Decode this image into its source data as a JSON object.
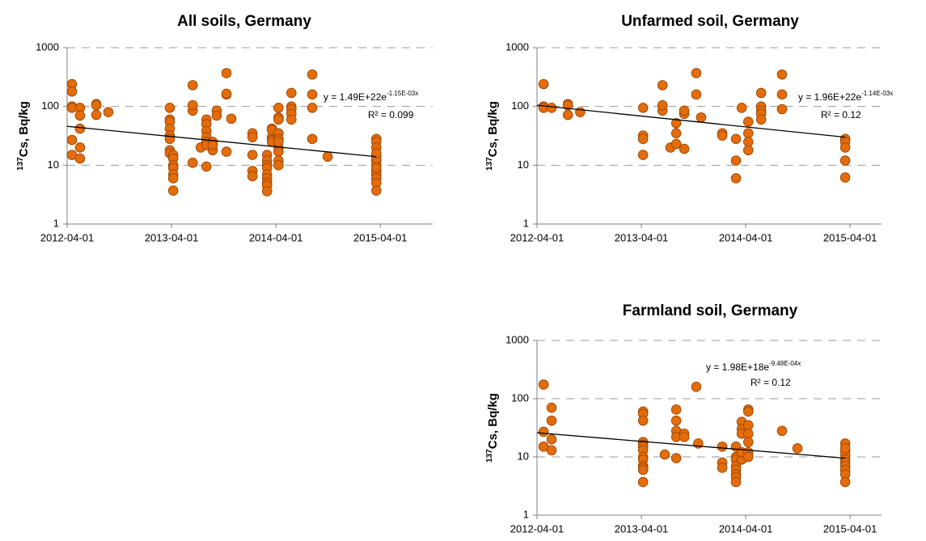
{
  "chart_data": [
    {
      "type": "scatter",
      "title": "All soils, Germany",
      "ylabel": {
        "superscript": "137",
        "text": "Cs, Bq/kg"
      },
      "color": "#e46c0a",
      "edgecolor": "#a04a08",
      "x": [
        "2012-04-18",
        "2012-04-18",
        "2012-04-18",
        "2012-04-18",
        "2012-04-18",
        "2012-04-18",
        "2012-05-16",
        "2012-05-16",
        "2012-05-16",
        "2012-05-16",
        "2012-05-16",
        "2012-07-12",
        "2012-07-12",
        "2012-07-12",
        "2012-08-23",
        "2013-03-26",
        "2013-03-26",
        "2013-03-26",
        "2013-03-26",
        "2013-03-26",
        "2013-03-26",
        "2013-03-26",
        "2013-03-26",
        "2013-04-07",
        "2013-04-07",
        "2013-04-07",
        "2013-04-07",
        "2013-04-07",
        "2013-04-07",
        "2013-04-07",
        "2013-06-14",
        "2013-06-14",
        "2013-06-14",
        "2013-06-14",
        "2013-07-12",
        "2013-08-01",
        "2013-08-01",
        "2013-08-01",
        "2013-08-01",
        "2013-08-01",
        "2013-08-01",
        "2013-08-01",
        "2013-08-23",
        "2013-08-23",
        "2013-08-23",
        "2013-09-06",
        "2013-09-06",
        "2013-10-10",
        "2013-10-10",
        "2013-10-10",
        "2013-10-10",
        "2013-10-27",
        "2014-01-09",
        "2014-01-09",
        "2014-01-09",
        "2014-01-09",
        "2014-01-09",
        "2014-03-01",
        "2014-03-01",
        "2014-03-01",
        "2014-03-01",
        "2014-03-01",
        "2014-03-01",
        "2014-03-01",
        "2014-03-01",
        "2014-03-01",
        "2014-03-18",
        "2014-03-18",
        "2014-03-18",
        "2014-03-18",
        "2014-03-18",
        "2014-04-10",
        "2014-04-10",
        "2014-04-10",
        "2014-04-10",
        "2014-04-10",
        "2014-04-10",
        "2014-04-10",
        "2014-04-10",
        "2014-04-10",
        "2014-04-10",
        "2014-05-25",
        "2014-05-25",
        "2014-05-25",
        "2014-05-25",
        "2014-05-25",
        "2014-08-06",
        "2014-08-06",
        "2014-08-06",
        "2014-08-06",
        "2014-09-29",
        "2015-03-18",
        "2015-03-18",
        "2015-03-18",
        "2015-03-18",
        "2015-03-18",
        "2015-03-18",
        "2015-03-18",
        "2015-03-18",
        "2015-03-18",
        "2015-03-18",
        "2015-03-18",
        "2015-03-18",
        "2015-03-18",
        "2015-03-18"
      ],
      "values": [
        240,
        180,
        100,
        95,
        27,
        15,
        95,
        70,
        42,
        20,
        13,
        110,
        105,
        72,
        80,
        95,
        60,
        55,
        42,
        32,
        28,
        18,
        16,
        15,
        13,
        10,
        9,
        7,
        6,
        3.7,
        230,
        85,
        105,
        11,
        20,
        60,
        50,
        38,
        30,
        25,
        22,
        9.5,
        25,
        18,
        22,
        85,
        70,
        370,
        160,
        165,
        17,
        62,
        35,
        30,
        15,
        8,
        6.5,
        15,
        12,
        10,
        9,
        7,
        6,
        5,
        4.5,
        3.6,
        42,
        30,
        27,
        25,
        40,
        95,
        65,
        60,
        35,
        28,
        20,
        17,
        12,
        10,
        25,
        170,
        100,
        90,
        75,
        60,
        350,
        160,
        95,
        28,
        14,
        28,
        25,
        20,
        15,
        12,
        10,
        8,
        7,
        6,
        5,
        3.7,
        9,
        13,
        16
      ],
      "trendline": {
        "x": [
          "2012-04-01",
          "2015-03-18"
        ],
        "values": [
          46,
          14
        ],
        "color": "#000000"
      },
      "equation": {
        "text": "y = 1.49E+22e",
        "exponent": "-1.15E-03x"
      },
      "r2": "R² = 0.099",
      "xlim": [
        "2012-04-01",
        "2015-10-01"
      ],
      "xticks": [
        "2012-04-01",
        "2013-04-01",
        "2014-04-01",
        "2015-04-01"
      ],
      "yscale": "log",
      "ylim": [
        1,
        1000
      ],
      "yticks": [
        1,
        10,
        100,
        1000
      ],
      "grid": true
    },
    {
      "type": "scatter",
      "title": "Unfarmed soil, Germany",
      "ylabel": {
        "superscript": "137",
        "text": "Cs, Bq/kg"
      },
      "color": "#e46c0a",
      "edgecolor": "#a04a08",
      "x": [
        "2012-04-24",
        "2012-04-24",
        "2012-04-24",
        "2012-05-22",
        "2012-07-18",
        "2012-07-18",
        "2012-07-18",
        "2012-08-30",
        "2013-04-07",
        "2013-04-07",
        "2013-04-07",
        "2013-04-07",
        "2013-06-14",
        "2013-06-14",
        "2013-06-14",
        "2013-07-12",
        "2013-08-01",
        "2013-08-01",
        "2013-08-01",
        "2013-08-29",
        "2013-08-29",
        "2013-08-29",
        "2013-10-10",
        "2013-10-10",
        "2013-10-27",
        "2014-01-09",
        "2014-01-09",
        "2014-02-26",
        "2014-02-26",
        "2014-02-26",
        "2014-03-18",
        "2014-04-10",
        "2014-04-10",
        "2014-04-10",
        "2014-04-10",
        "2014-05-25",
        "2014-05-25",
        "2014-05-25",
        "2014-05-25",
        "2014-05-25",
        "2014-08-06",
        "2014-08-06",
        "2014-08-06",
        "2015-03-15",
        "2015-03-15",
        "2015-03-15",
        "2015-03-15",
        "2015-03-15"
      ],
      "values": [
        240,
        100,
        95,
        95,
        110,
        105,
        72,
        80,
        95,
        32,
        28,
        15,
        230,
        85,
        105,
        20,
        52,
        35,
        23,
        75,
        19,
        85,
        370,
        160,
        65,
        35,
        32,
        12,
        6,
        28,
        95,
        55,
        35,
        25,
        18,
        170,
        100,
        85,
        75,
        60,
        350,
        160,
        90,
        28,
        25,
        20,
        12,
        6.2
      ],
      "trendline": {
        "x": [
          "2012-04-01",
          "2015-03-15"
        ],
        "values": [
          105,
          30
        ],
        "color": "#000000"
      },
      "equation": {
        "text": "y = 1.96E+22e",
        "exponent": "-1.14E-03x"
      },
      "r2": "R² = 0.12",
      "xlim": [
        "2012-04-01",
        "2015-07-20"
      ],
      "xticks": [
        "2012-04-01",
        "2013-04-01",
        "2014-04-01",
        "2015-04-01"
      ],
      "yscale": "log",
      "ylim": [
        1,
        1000
      ],
      "yticks": [
        1,
        10,
        100,
        1000
      ],
      "grid": true
    },
    {
      "type": "scatter",
      "title": "Farmland soil, Germany",
      "ylabel": {
        "superscript": "137",
        "text": "Cs, Bq/kg"
      },
      "color": "#e46c0a",
      "edgecolor": "#a04a08",
      "x": [
        "2012-04-24",
        "2012-04-24",
        "2012-04-24",
        "2012-05-22",
        "2012-05-22",
        "2012-05-22",
        "2012-05-22",
        "2013-04-07",
        "2013-04-07",
        "2013-04-07",
        "2013-04-07",
        "2013-04-07",
        "2013-04-07",
        "2013-04-07",
        "2013-04-07",
        "2013-04-07",
        "2013-04-07",
        "2013-04-07",
        "2013-04-07",
        "2013-04-07",
        "2013-06-22",
        "2013-08-01",
        "2013-08-01",
        "2013-08-01",
        "2013-08-01",
        "2013-08-01",
        "2013-08-29",
        "2013-08-29",
        "2013-10-10",
        "2013-10-17",
        "2014-01-09",
        "2014-01-09",
        "2014-01-09",
        "2014-02-26",
        "2014-02-26",
        "2014-02-26",
        "2014-02-26",
        "2014-02-26",
        "2014-02-26",
        "2014-02-26",
        "2014-02-26",
        "2014-03-18",
        "2014-03-18",
        "2014-03-18",
        "2014-03-18",
        "2014-03-18",
        "2014-04-10",
        "2014-04-10",
        "2014-04-10",
        "2014-04-10",
        "2014-04-10",
        "2014-04-10",
        "2014-04-10",
        "2014-08-06",
        "2014-09-29",
        "2015-03-15",
        "2015-03-15",
        "2015-03-15",
        "2015-03-15",
        "2015-03-15",
        "2015-03-15",
        "2015-03-15",
        "2015-03-15",
        "2015-03-15",
        "2015-03-15"
      ],
      "values": [
        175,
        27,
        15,
        70,
        42,
        20,
        13,
        60,
        55,
        42,
        18,
        16,
        15,
        13,
        10,
        9,
        7,
        6.5,
        6,
        3.7,
        11,
        65,
        42,
        28,
        22,
        9.5,
        25,
        22,
        160,
        17,
        15,
        8,
        6.5,
        15,
        10,
        9,
        7,
        6,
        5,
        4.5,
        3.7,
        40,
        30,
        25,
        9,
        12,
        65,
        60,
        35,
        25,
        18,
        12,
        10,
        28,
        14,
        17,
        13,
        11,
        9,
        8,
        7,
        6,
        5,
        3.7,
        14
      ],
      "trendline": {
        "x": [
          "2012-04-01",
          "2015-03-15"
        ],
        "values": [
          26,
          9.5
        ],
        "color": "#000000"
      },
      "equation": {
        "text": "y = 1.98E+18e",
        "exponent": "-9.48E-04x"
      },
      "r2": "R² = 0.12",
      "xlim": [
        "2012-04-01",
        "2015-07-20"
      ],
      "xticks": [
        "2012-04-01",
        "2013-04-01",
        "2014-04-01",
        "2015-04-01"
      ],
      "yscale": "log",
      "ylim": [
        1,
        1000
      ],
      "yticks": [
        1,
        10,
        100,
        1000
      ],
      "grid": true
    }
  ]
}
